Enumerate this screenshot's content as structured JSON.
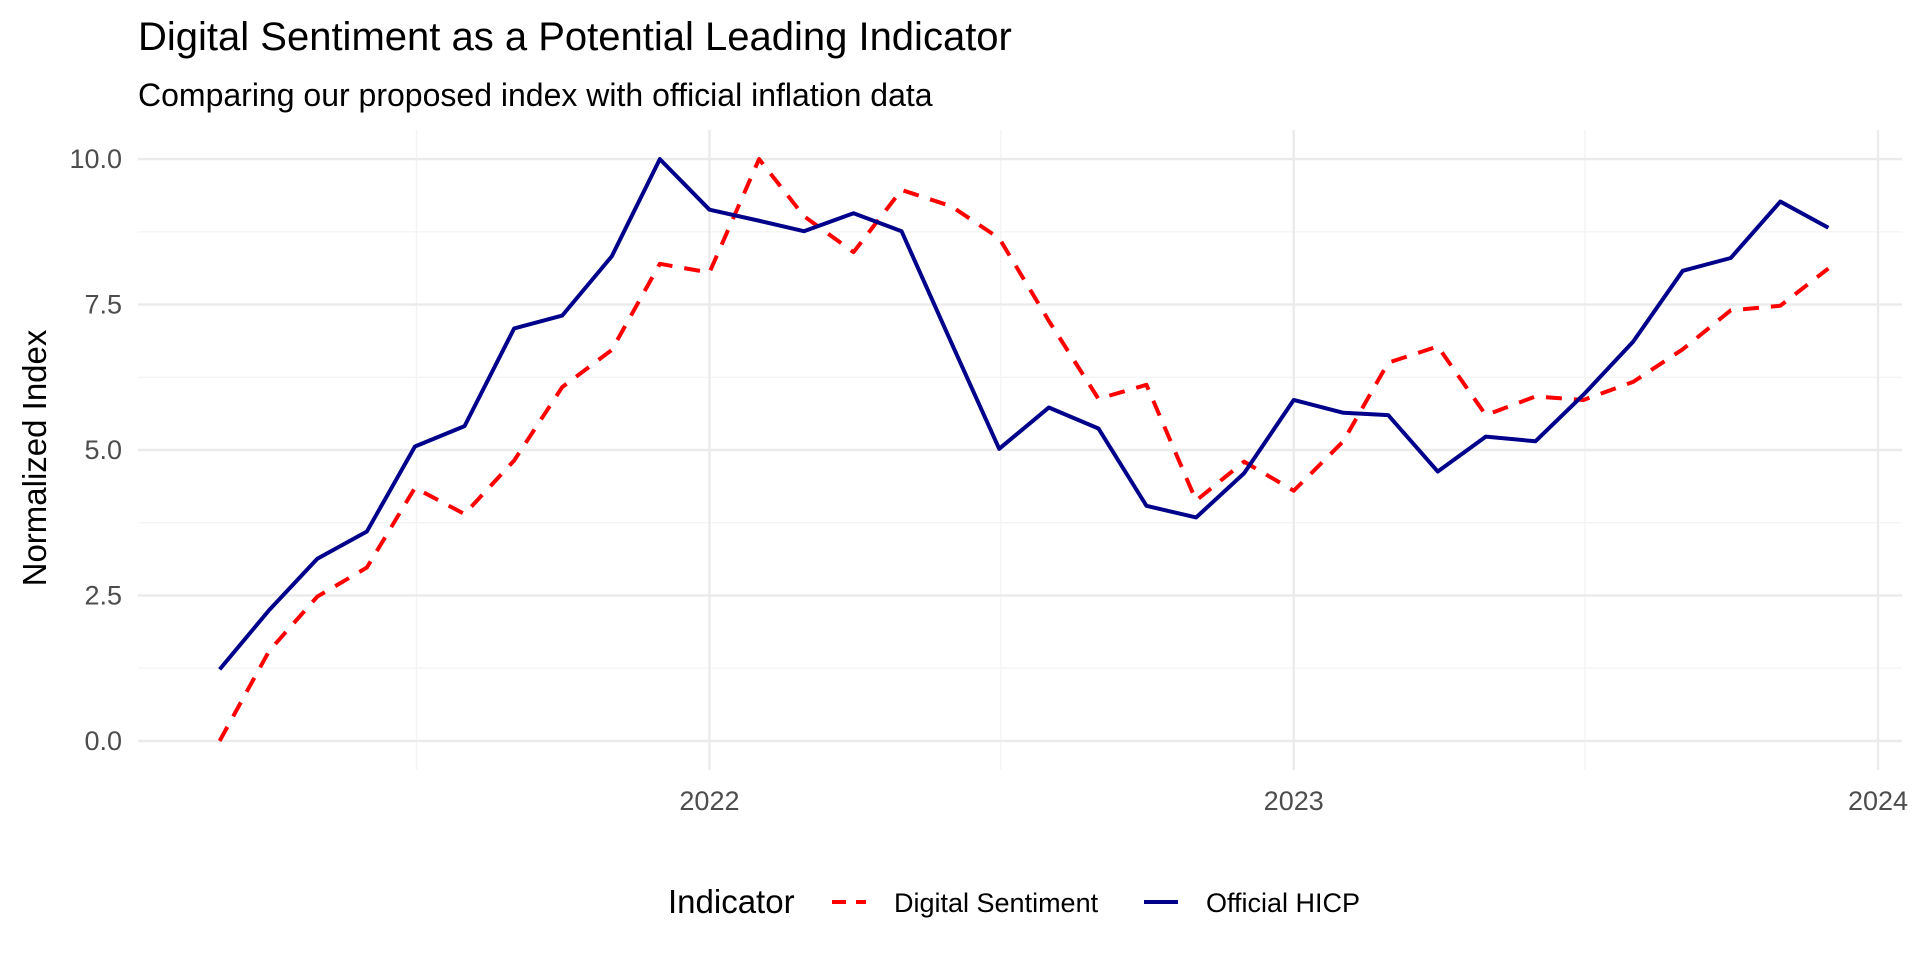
{
  "chart_data": {
    "type": "line",
    "title": "Digital Sentiment as a Potential Leading Indicator",
    "subtitle": "Comparing our proposed index with official inflation data",
    "xlabel": "",
    "ylabel": "Normalized Index",
    "x_ticks": [
      "2022",
      "2023",
      "2024"
    ],
    "y_ticks": [
      "0.0",
      "2.5",
      "5.0",
      "7.5",
      "10.0"
    ],
    "ylim": [
      -0.5,
      10.5
    ],
    "xlim": [
      "2021-01-09",
      "2024-01-16"
    ],
    "grid": true,
    "legend_position": "bottom",
    "legend_title": "Indicator",
    "x": [
      "2021-03-01",
      "2021-04-01",
      "2021-05-01",
      "2021-06-01",
      "2021-07-01",
      "2021-08-01",
      "2021-09-01",
      "2021-10-01",
      "2021-11-01",
      "2021-12-01",
      "2022-01-01",
      "2022-02-01",
      "2022-03-01",
      "2022-04-01",
      "2022-05-01",
      "2022-06-01",
      "2022-07-01",
      "2022-08-01",
      "2022-09-01",
      "2022-10-01",
      "2022-11-01",
      "2022-12-01",
      "2023-01-01",
      "2023-02-01",
      "2023-03-01",
      "2023-04-01",
      "2023-05-01",
      "2023-06-01",
      "2023-07-01",
      "2023-08-01",
      "2023-09-01",
      "2023-10-01",
      "2023-11-01",
      "2023-12-01"
    ],
    "series": [
      {
        "name": "Digital Sentiment",
        "color": "#ff0000",
        "dash": "dashed",
        "values": [
          0.0,
          1.55,
          2.48,
          2.98,
          4.35,
          3.9,
          4.82,
          6.08,
          6.72,
          8.2,
          8.05,
          10.0,
          9.02,
          8.4,
          9.47,
          9.19,
          8.64,
          7.22,
          5.88,
          6.12,
          4.13,
          4.8,
          4.3,
          5.15,
          6.5,
          6.78,
          5.6,
          5.92,
          5.86,
          6.17,
          6.73,
          7.4,
          7.48,
          8.12
        ]
      },
      {
        "name": "Official HICP",
        "color": "#00008b",
        "dash": "solid",
        "values": [
          1.23,
          2.25,
          3.13,
          3.6,
          5.06,
          5.41,
          7.09,
          7.31,
          8.33,
          10.0,
          9.13,
          8.94,
          8.76,
          9.07,
          8.76,
          6.85,
          5.02,
          5.73,
          5.37,
          4.04,
          3.84,
          4.6,
          5.86,
          5.64,
          5.6,
          4.63,
          5.23,
          5.15,
          5.95,
          6.86,
          8.08,
          8.3,
          9.27,
          8.82
        ]
      }
    ]
  }
}
